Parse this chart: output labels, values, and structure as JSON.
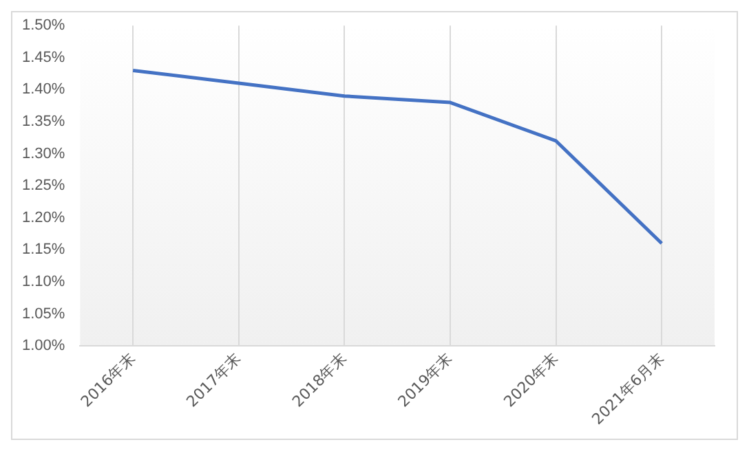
{
  "chart_data": {
    "type": "line",
    "categories": [
      "2016年末",
      "2017年末",
      "2018年末",
      "2019年末",
      "2020年末",
      "2021年6月末"
    ],
    "series": [
      {
        "color": "#4472c4",
        "values": [
          1.43,
          1.41,
          1.39,
          1.38,
          1.32,
          1.16
        ]
      }
    ],
    "ylim": [
      1.0,
      1.5
    ],
    "yticks": [
      {
        "value": 1.0,
        "label": "1.00%"
      },
      {
        "value": 1.05,
        "label": "1.05%"
      },
      {
        "value": 1.1,
        "label": "1.10%"
      },
      {
        "value": 1.15,
        "label": "1.15%"
      },
      {
        "value": 1.2,
        "label": "1.20%"
      },
      {
        "value": 1.25,
        "label": "1.25%"
      },
      {
        "value": 1.3,
        "label": "1.30%"
      },
      {
        "value": 1.35,
        "label": "1.35%"
      },
      {
        "value": 1.4,
        "label": "1.40%"
      },
      {
        "value": 1.45,
        "label": "1.45%"
      },
      {
        "value": 1.5,
        "label": "1.50%"
      }
    ],
    "grid": "x",
    "marker": "none",
    "line_style": "solid",
    "legend": false
  }
}
